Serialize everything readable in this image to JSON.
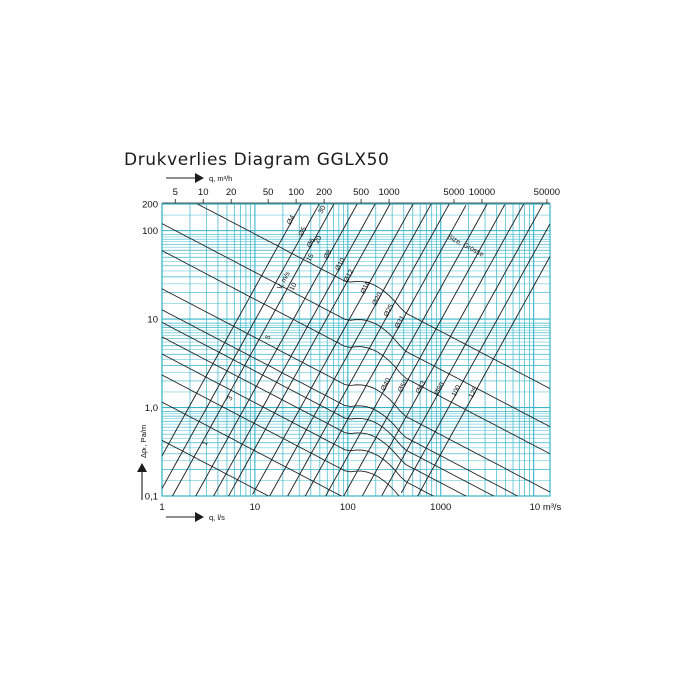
{
  "page": {
    "title": "Drukverlies Diagram GGLX50"
  },
  "colors": {
    "grid": "#35b6cc",
    "curves": "#1c1c1c",
    "text": "#111111"
  },
  "chart_data": {
    "type": "line",
    "scale": {
      "x": "log",
      "y": "log"
    },
    "xlim": [
      1,
      15000
    ],
    "ylim": [
      0.1,
      200
    ],
    "x_label": "q, l/s",
    "x_ticks": [
      {
        "v": 1,
        "label": "1"
      },
      {
        "v": 10,
        "label": "10"
      },
      {
        "v": 100,
        "label": "100"
      },
      {
        "v": 1000,
        "label": "1000"
      },
      {
        "v": 10000,
        "label": "10 m³/s"
      }
    ],
    "top_axis_label": "q, m³/h",
    "top_ticks": [
      {
        "v": 5,
        "label": "5"
      },
      {
        "v": 10,
        "label": "10"
      },
      {
        "v": 20,
        "label": "20"
      },
      {
        "v": 50,
        "label": "50"
      },
      {
        "v": 100,
        "label": "100"
      },
      {
        "v": 200,
        "label": "200"
      },
      {
        "v": 500,
        "label": "500"
      },
      {
        "v": 1000,
        "label": "1000"
      },
      {
        "v": 5000,
        "label": "5000"
      },
      {
        "v": 10000,
        "label": "10000"
      },
      {
        "v": 50000,
        "label": "50000"
      }
    ],
    "y_label": "Δpₜ, Pa/m",
    "y_ticks": [
      {
        "v": 0.1,
        "label": "0,1"
      },
      {
        "v": 1,
        "label": "1,0"
      },
      {
        "v": 10,
        "label": "10"
      },
      {
        "v": 100,
        "label": "100"
      },
      {
        "v": 200,
        "label": "200"
      }
    ],
    "size_family_label": "Size, Grösse",
    "size_lines": [
      {
        "name": "Ø4",
        "a": 1.94
      },
      {
        "name": "Ø5",
        "a": 3.03
      },
      {
        "name": "Ø6",
        "a": 4.36
      },
      {
        "name": "Ø8",
        "a": 7.76
      },
      {
        "name": "Ø10",
        "a": 12.1
      },
      {
        "name": "Ø12",
        "a": 17.5
      },
      {
        "name": "Ø16",
        "a": 31.0
      },
      {
        "name": "Ø20",
        "a": 48.5
      },
      {
        "name": "Ø25",
        "a": 75.8
      },
      {
        "name": "Ø31",
        "a": 117
      },
      {
        "name": "Ø40",
        "a": 194
      },
      {
        "name": "Ø50",
        "a": 303
      },
      {
        "name": "Ø63",
        "a": 481
      },
      {
        "name": "Ø80",
        "a": 776
      },
      {
        "name": "100",
        "a": 1212
      },
      {
        "name": "125",
        "a": 1894
      }
    ],
    "velocity_label": "V, m/s",
    "velocity_lines": [
      {
        "name": "1",
        "v": 1
      },
      {
        "name": "2",
        "v": 2
      },
      {
        "name": "3",
        "v": 3
      },
      {
        "name": "4",
        "v": 4
      },
      {
        "name": "5",
        "v": 5
      },
      {
        "name": "6",
        "v": 6
      },
      {
        "name": "7",
        "v": 7
      },
      {
        "name": "8",
        "v": 8
      },
      {
        "name": "10",
        "v": 10
      },
      {
        "name": "15",
        "v": 15
      },
      {
        "name": "20",
        "v": 20
      },
      {
        "name": "30",
        "v": 30
      }
    ],
    "velocity_value_labels": [
      "1",
      "3",
      "5",
      "10",
      "15",
      "20",
      "30"
    ],
    "size_labels": [
      "Ø4",
      "Ø5",
      "Ø6",
      "Ø8",
      "Ø10",
      "Ø12",
      "Ø16",
      "Ø20",
      "Ø25",
      "Ø31",
      "Ø40",
      "Ø50",
      "Ø63",
      "Ø80",
      "100",
      "125"
    ]
  }
}
